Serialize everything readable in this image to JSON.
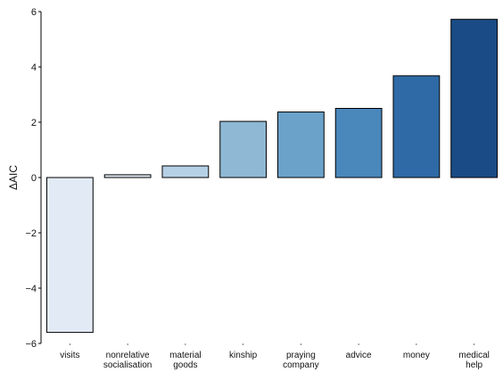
{
  "chart_data": {
    "type": "bar",
    "ylabel": "ΔAIC",
    "xlabel": "",
    "ylim": [
      -6,
      6
    ],
    "yticks": [
      "6",
      "4",
      "2",
      "0",
      "−2",
      "−4",
      "−6"
    ],
    "grid": false,
    "categories": [
      [
        "visits"
      ],
      [
        "nonrelative",
        "socialisation"
      ],
      [
        "material",
        "goods"
      ],
      [
        "kinship"
      ],
      [
        "praying",
        "company"
      ],
      [
        "advice"
      ],
      [
        "money"
      ],
      [
        "medical",
        "help"
      ]
    ],
    "values": [
      -5.6,
      0.1,
      0.42,
      2.03,
      2.37,
      2.5,
      3.68,
      5.72
    ],
    "colors": [
      "#e2eaf5",
      "#dfe9f4",
      "#b5cfe5",
      "#8eb8d4",
      "#6ba2c9",
      "#4a87bb",
      "#2f6aa6",
      "#1a4b86"
    ],
    "bar_outline": "#000000"
  }
}
